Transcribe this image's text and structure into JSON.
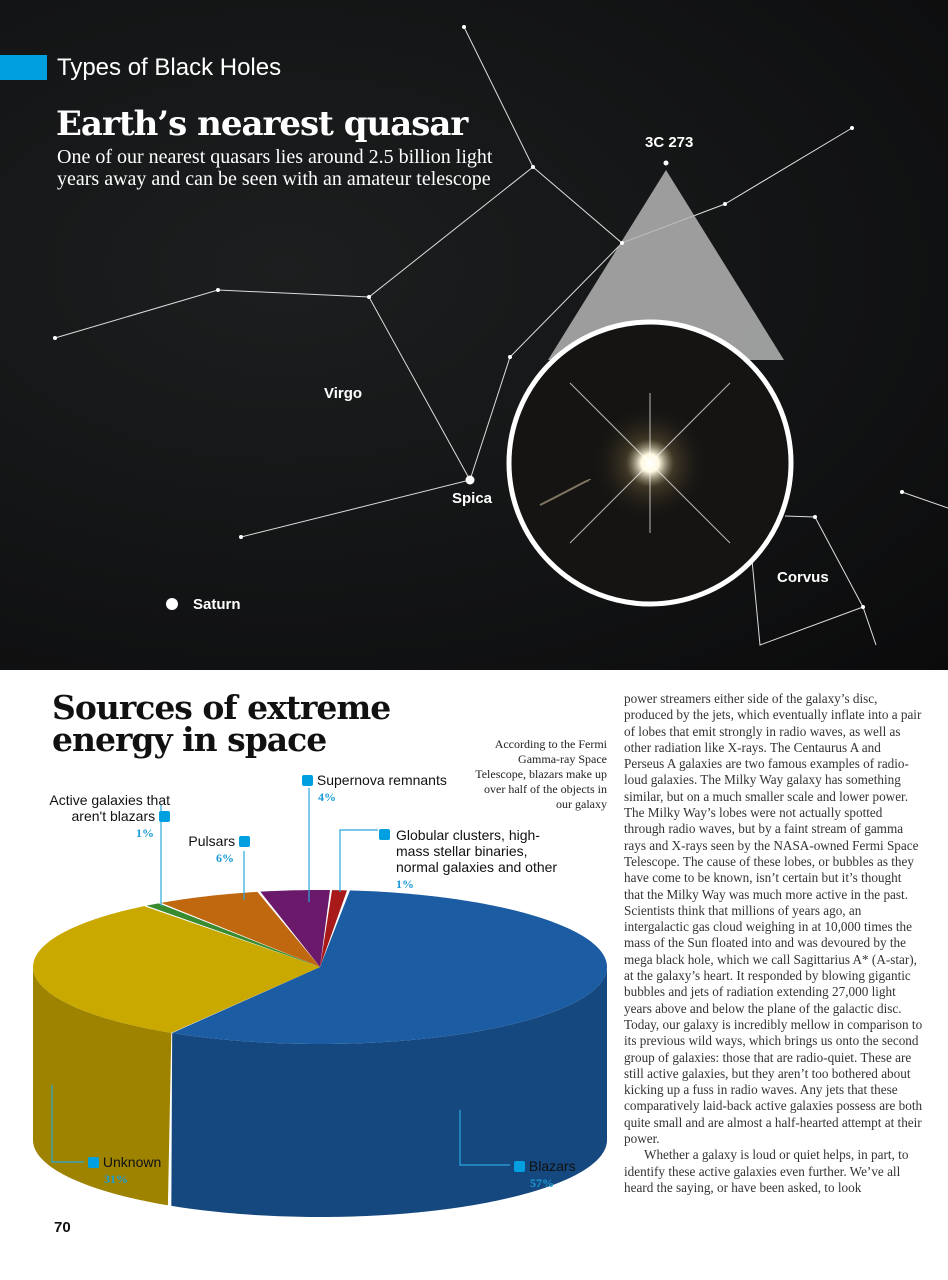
{
  "header": {
    "section": "Types of Black Holes",
    "title": "Earth’s nearest quasar",
    "subtitle": "One of our nearest quasars lies around 2.5 billion light years away and can be seen with an amateur telescope"
  },
  "sky_labels": {
    "quasar": "3C 273",
    "virgo": "Virgo",
    "spica": "Spica",
    "corvus": "Corvus",
    "saturn": "Saturn"
  },
  "infographic": {
    "title": "Sources of extreme energy in space",
    "note": "According to the Fermi Gamma-ray Space Telescope, blazars make up over half of the objects in our galaxy"
  },
  "colors": {
    "accent": "#00a0e0",
    "blazars": "#1b5ca3",
    "unknown": "#c9a800",
    "active": "#3a8a30",
    "pulsars": "#c0680f",
    "supernova": "#6b1a6b",
    "globular": "#a81a1a"
  },
  "chart_data": {
    "type": "pie",
    "title": "Sources of extreme energy in space",
    "slices": [
      {
        "label": "Blazars",
        "value": 57,
        "pct": "57%"
      },
      {
        "label": "Unknown",
        "value": 31,
        "pct": "31%"
      },
      {
        "label": "Active galaxies that aren't blazars",
        "value": 1,
        "pct": "1%"
      },
      {
        "label": "Pulsars",
        "value": 6,
        "pct": "6%"
      },
      {
        "label": "Supernova remnants",
        "value": 4,
        "pct": "4%"
      },
      {
        "label": "Globular clusters, high-mass stellar binaries, normal galaxies and other",
        "value": 1,
        "pct": "1%"
      }
    ]
  },
  "body": {
    "p1": "power streamers either side of the galaxy’s disc, produced by the jets, which eventually inflate into a pair of lobes that emit strongly in radio waves, as well as other radiation like X-rays. The Centaurus A and Perseus A galaxies are two famous examples of radio-loud galaxies. The Milky Way galaxy has something similar, but on a much smaller scale and lower power. The Milky Way’s lobes were not actually spotted through radio waves, but by a faint stream of gamma rays and X-rays seen by the NASA-owned Fermi Space Telescope. The cause of these lobes, or bubbles as they have come to be known, isn’t certain but it’s thought that the Milky Way was much more active in the past. Scientists think that millions of years ago, an intergalactic gas cloud weighing in at 10,000 times the mass of the Sun floated into and was devoured by the mega black hole, which we call Sagittarius A* (A-star), at the galaxy’s heart. It responded by blowing gigantic bubbles and jets of radiation extending 27,000 light years above and below the plane of the galactic disc. Today, our galaxy is incredibly mellow in comparison to its previous wild ways, which brings us onto the second group of galaxies: those that are radio-quiet. These are still active galaxies, but they aren’t too bothered about kicking up a fuss in radio waves. Any jets that these comparatively laid-back active galaxies possess are both quite small and are almost a half-hearted attempt at their power.",
    "p2": "Whether a galaxy is loud or quiet helps, in part, to identify these active galaxies even further. We’ve all heard the saying, or have been asked, to look"
  },
  "page_number": "70"
}
